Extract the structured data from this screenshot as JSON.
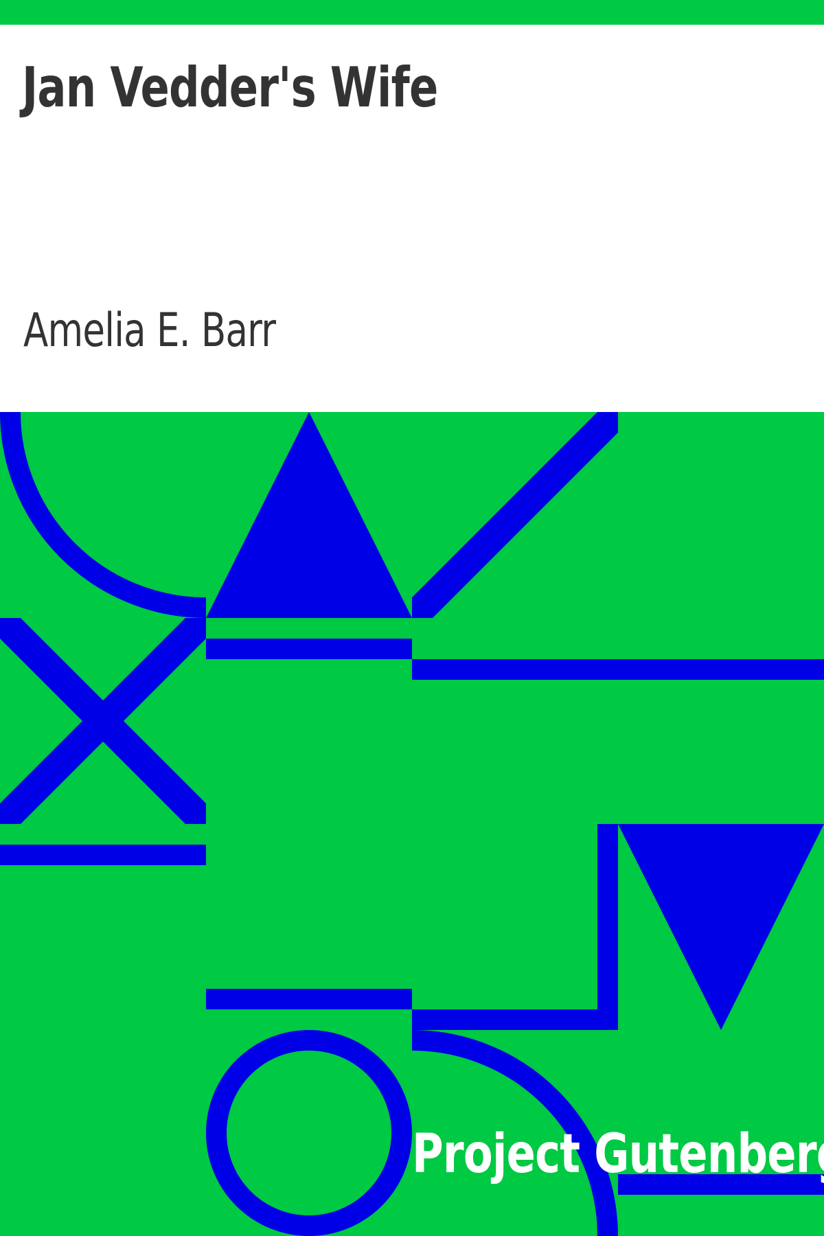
{
  "cover": {
    "title": "Jan Vedder's Wife",
    "author": "Amelia E. Barr",
    "publisher": "Project Gutenberg"
  },
  "colors": {
    "background": "#00c943",
    "shapes": "#0000e6",
    "title_text": "#333333",
    "publisher_text": "#ffffff"
  },
  "decoration": {
    "shapes": [
      "quarter-circle-arc",
      "triangle-up",
      "diagonal-line",
      "x-cross",
      "horizontal-bars",
      "triangle-down",
      "ring",
      "arc",
      "right-angle-line"
    ]
  }
}
